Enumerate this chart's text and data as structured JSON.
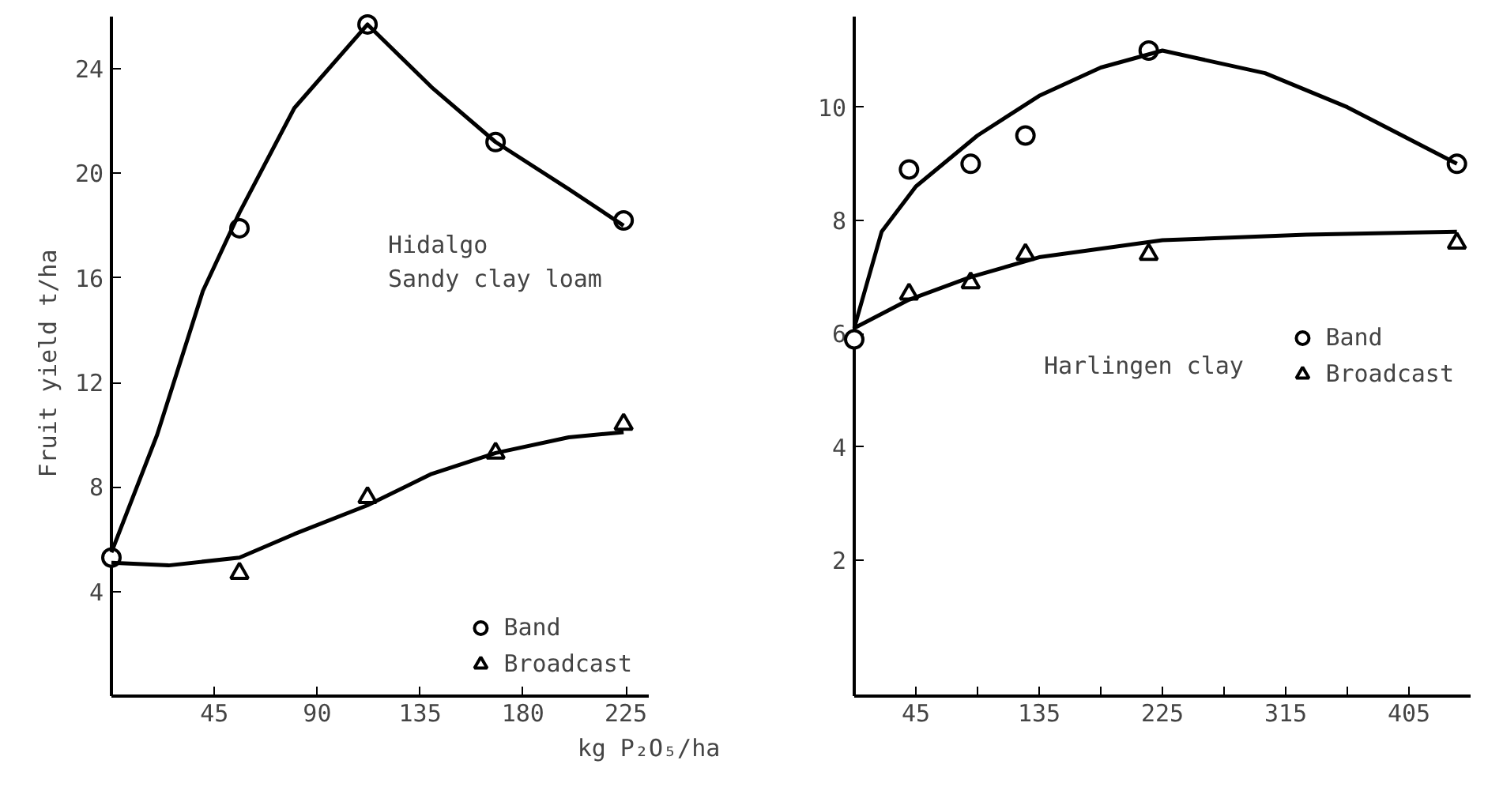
{
  "chart_data": [
    {
      "type": "scatter",
      "xlabel": "kg P₂O₅/ha",
      "ylabel": "Fruit yield  t/ha",
      "annotations": [
        "Hidalgo\nSandy clay loam"
      ],
      "xlim": [
        0,
        235
      ],
      "ylim": [
        0,
        26
      ],
      "xticks": [
        45,
        90,
        135,
        180,
        225
      ],
      "yticks": [
        4,
        8,
        12,
        16,
        20,
        24
      ],
      "grid": false,
      "legend": "bottom right",
      "series": [
        {
          "name": "Band",
          "marker": "circle",
          "color": "#000000",
          "x": [
            0,
            56,
            112,
            168,
            224
          ],
          "values": [
            5.3,
            17.9,
            25.7,
            21.2,
            18.2
          ]
        },
        {
          "name": "Broadcast",
          "marker": "triangle",
          "color": "#000000",
          "x": [
            56,
            112,
            168,
            224
          ],
          "values": [
            4.7,
            7.6,
            9.3,
            10.4
          ]
        },
        {
          "type": "line",
          "color": "#000000",
          "x": [
            0,
            20,
            40,
            56,
            80,
            112,
            140,
            168,
            200,
            224
          ],
          "values": [
            5.5,
            10,
            15.5,
            18.5,
            22.5,
            25.7,
            23.3,
            21.2,
            19.4,
            18
          ]
        },
        {
          "type": "line",
          "color": "#000000",
          "x": [
            0,
            25,
            56,
            80,
            112,
            140,
            168,
            200,
            224
          ],
          "values": [
            5.1,
            5.0,
            5.3,
            6.2,
            7.3,
            8.5,
            9.3,
            9.9,
            10.1
          ]
        }
      ]
    },
    {
      "type": "scatter",
      "annotations": [
        "Harlingen clay"
      ],
      "xlim": [
        0,
        450
      ],
      "ylim": [
        -0.4,
        11.6
      ],
      "xticks": [
        {
          "value": 0,
          "label": null
        },
        45,
        {
          "value": 90,
          "label": null
        },
        135,
        {
          "value": 180,
          "label": null
        },
        225,
        {
          "value": 270,
          "label": null
        },
        315,
        {
          "value": 360,
          "label": null
        },
        405
      ],
      "yticks": [
        2,
        4,
        6,
        8,
        10
      ],
      "grid": false,
      "legend": "right",
      "series": [
        {
          "name": "Band",
          "marker": "circle",
          "color": "#000000",
          "x": [
            0,
            40,
            85,
            125,
            215,
            440
          ],
          "values": [
            5.9,
            8.9,
            9.0,
            9.5,
            11.0,
            9.0
          ]
        },
        {
          "name": "Broadcast",
          "marker": "triangle",
          "color": "#000000",
          "x": [
            40,
            85,
            125,
            215,
            440
          ],
          "values": [
            6.7,
            6.9,
            7.4,
            7.4,
            7.6
          ]
        },
        {
          "type": "line",
          "color": "#000000",
          "x": [
            0,
            20,
            45,
            90,
            135,
            180,
            225,
            300,
            360,
            440
          ],
          "values": [
            6.1,
            7.8,
            8.6,
            9.5,
            10.2,
            10.7,
            11.0,
            10.6,
            10.0,
            9.0
          ]
        },
        {
          "type": "line",
          "color": "#000000",
          "x": [
            0,
            40,
            85,
            135,
            225,
            330,
            440
          ],
          "values": [
            6.1,
            6.6,
            7.0,
            7.35,
            7.65,
            7.75,
            7.8
          ]
        }
      ]
    }
  ]
}
